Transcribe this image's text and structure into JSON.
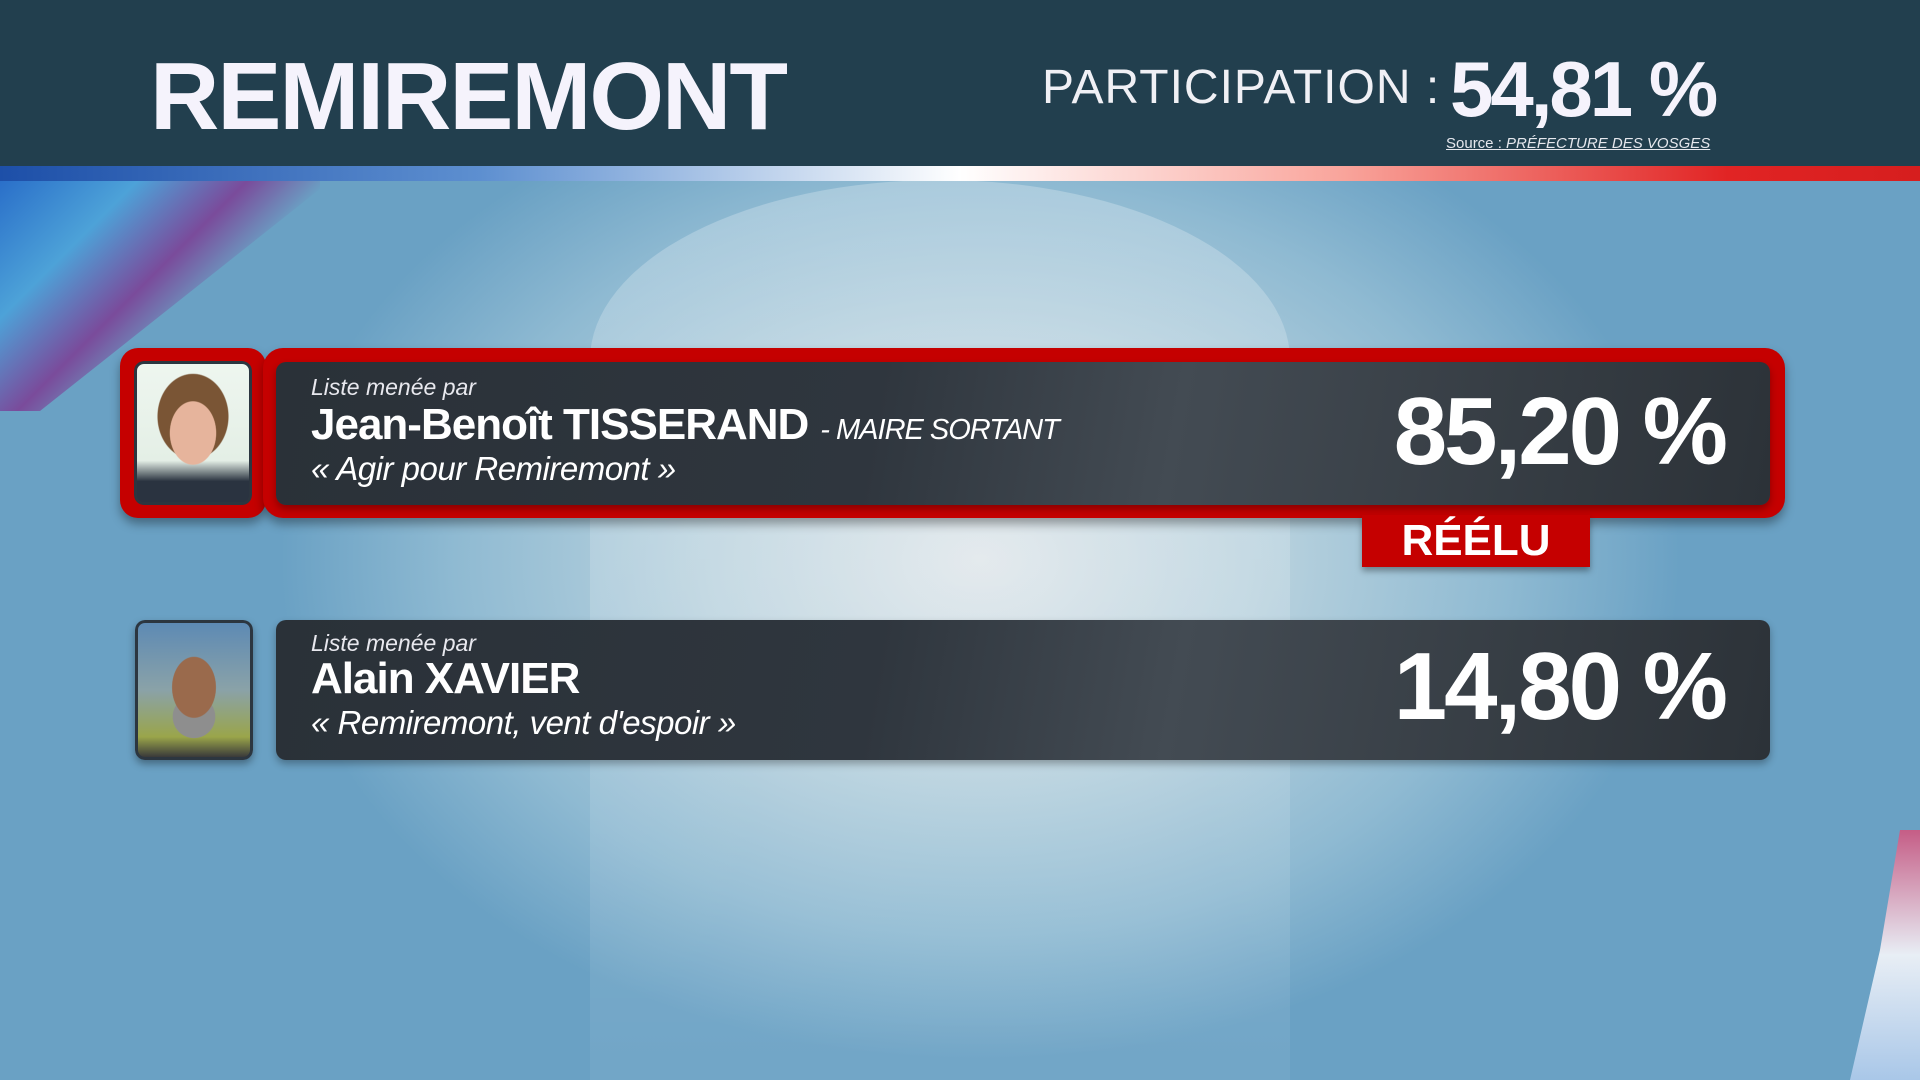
{
  "header": {
    "title": "REMIREMONT",
    "participation_label": "PARTICIPATION :",
    "participation_value": "54,81 %",
    "source_label": "Source :",
    "source_value": "PRÉFECTURE DES VOSGES"
  },
  "candidates": [
    {
      "lead_label": "Liste menée par",
      "name": "Jean-Benoît TISSERAND",
      "status": "- MAIRE SORTANT",
      "slogan": "« Agir pour Remiremont »",
      "percent": "85,20 %",
      "badge": "RÉÉLU"
    },
    {
      "lead_label": "Liste menée par",
      "name": "Alain XAVIER",
      "slogan": "« Remiremont, vent d'espoir »",
      "percent": "14,80 %"
    }
  ],
  "colors": {
    "header": "#223f4e",
    "winner": "#c50000",
    "bar": "#2f363e"
  }
}
